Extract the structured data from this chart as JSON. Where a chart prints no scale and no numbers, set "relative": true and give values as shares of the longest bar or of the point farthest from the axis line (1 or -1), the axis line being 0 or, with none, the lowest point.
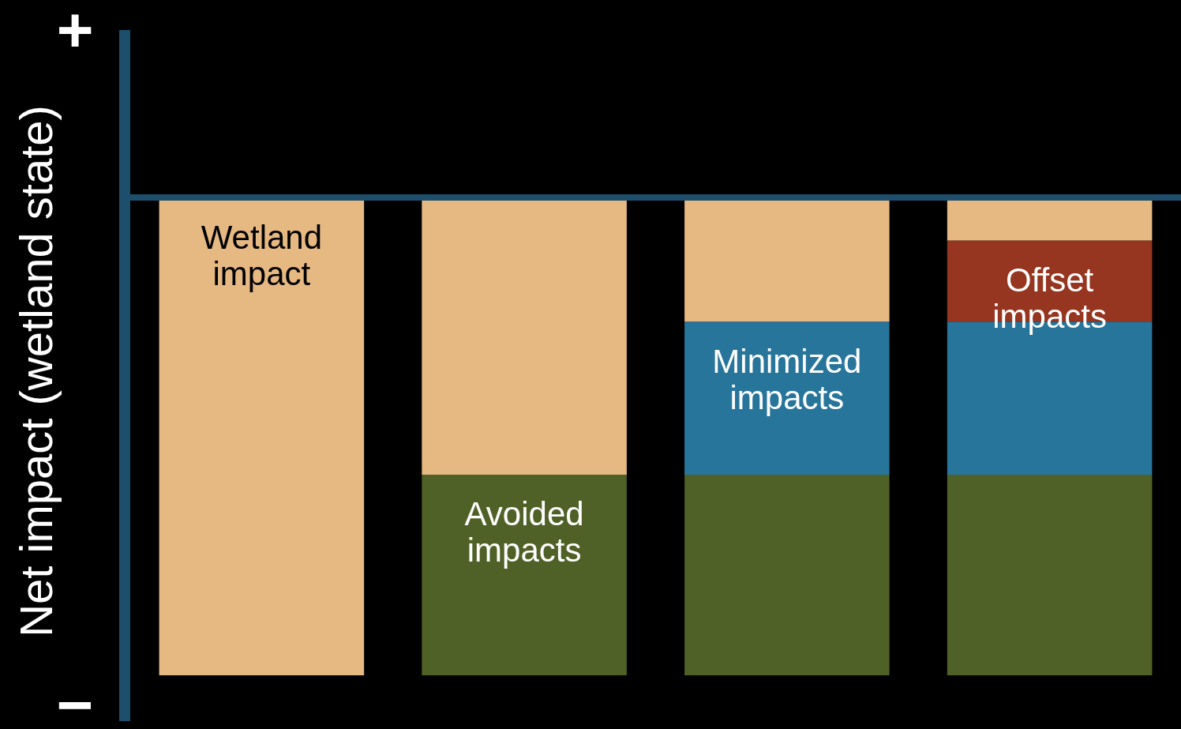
{
  "chart_data": {
    "type": "bar",
    "stacked": true,
    "relative": true,
    "ylabel": "Net impact (wetland state)",
    "annotations": [
      "+",
      "−"
    ],
    "categories": [
      null,
      null,
      null,
      null
    ],
    "legend": false,
    "tick_labels": false,
    "series": [
      {
        "name": "Wetland impact",
        "color": "#e6b882",
        "values": [
          -1,
          -0.58,
          -0.26,
          -0.09
        ]
      },
      {
        "name": "Offset impacts",
        "color": "#963621",
        "values": [
          null,
          null,
          null,
          -0.17
        ]
      },
      {
        "name": "Minimized impacts",
        "color": "#28759b",
        "values": [
          null,
          null,
          -0.32,
          -0.32
        ]
      },
      {
        "name": "Avoided impacts",
        "color": "#4f6126",
        "values": [
          null,
          -0.42,
          -0.42,
          -0.42
        ]
      }
    ]
  }
}
